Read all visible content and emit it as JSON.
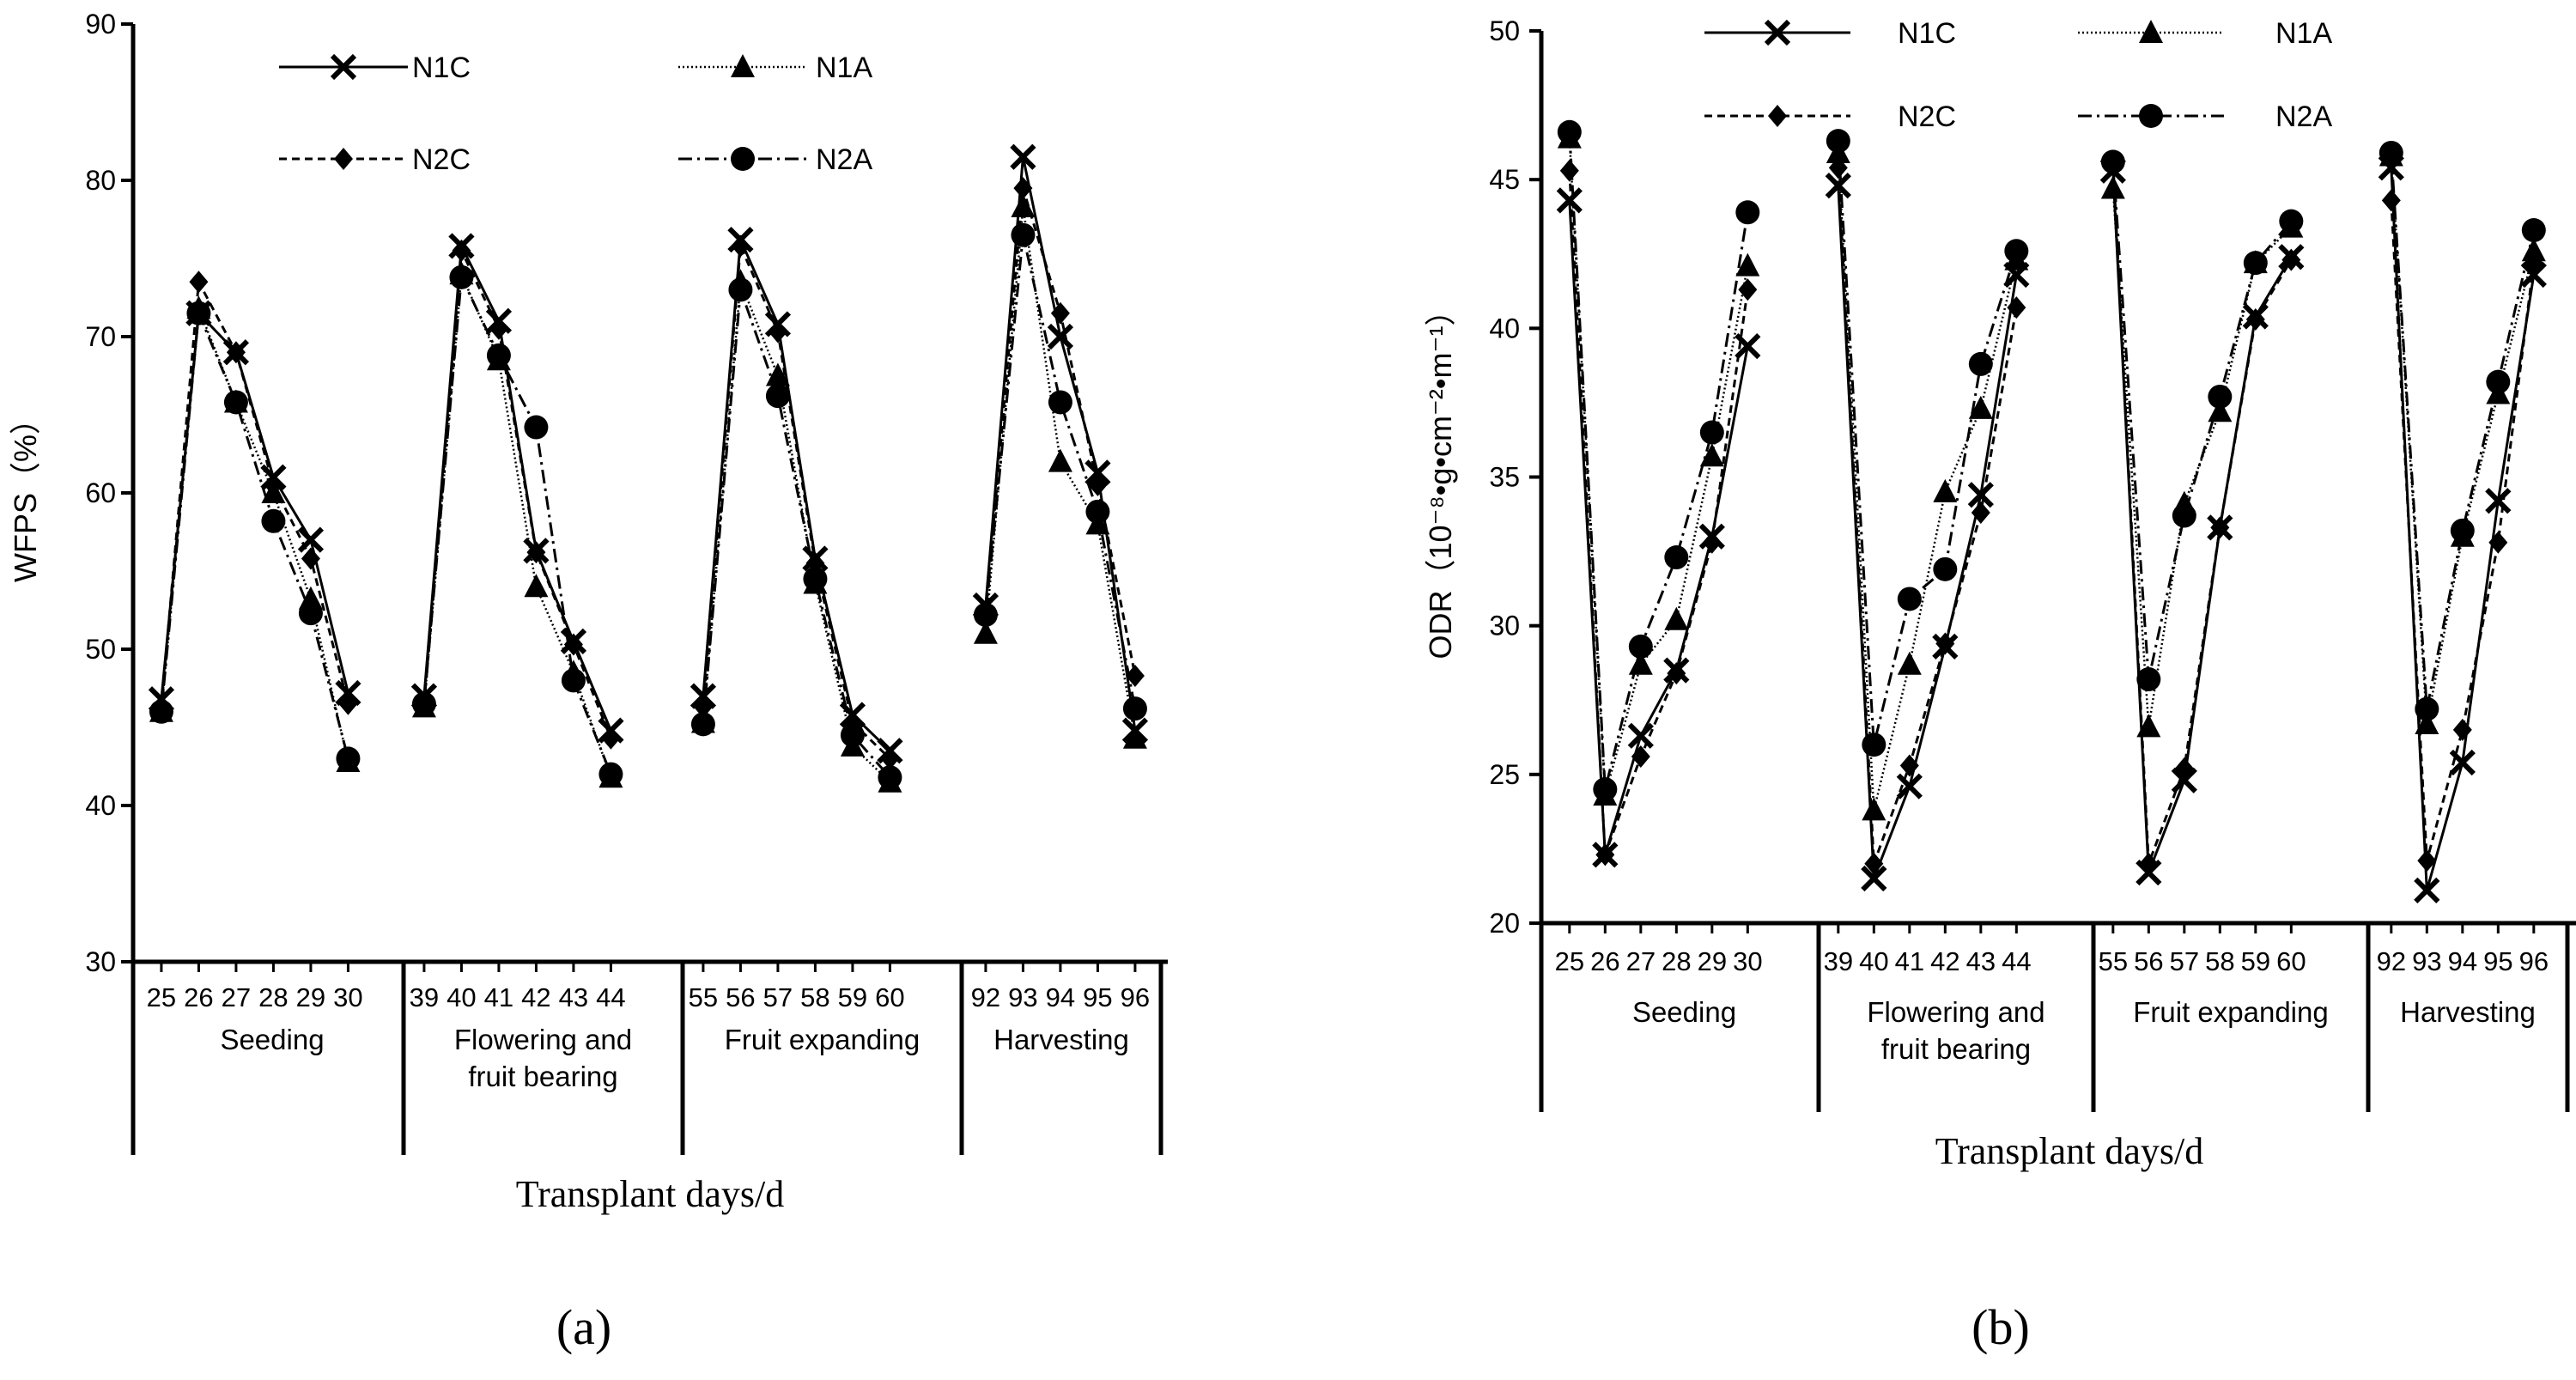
{
  "chart_data": [
    {
      "type": "line",
      "panel_label": "(a)",
      "ylabel": "WFPS（%）",
      "xlabel": "Transplant days/d",
      "ylim": [
        30,
        90
      ],
      "yticks": [
        30,
        40,
        50,
        60,
        70,
        80,
        90
      ],
      "groups": [
        {
          "name": "Seeding",
          "days": [
            "25",
            "26",
            "27",
            "28",
            "29",
            "30"
          ]
        },
        {
          "name": "Flowering and|fruit bearing",
          "days": [
            "39",
            "40",
            "41",
            "42",
            "43",
            "44"
          ]
        },
        {
          "name": "Fruit expanding",
          "days": [
            "55",
            "56",
            "57",
            "58",
            "59",
            "60"
          ]
        },
        {
          "name": "Harvesting",
          "days": [
            "92",
            "93",
            "94",
            "95",
            "96"
          ]
        }
      ],
      "series": [
        {
          "name": "N1C",
          "marker": "x",
          "dash": "",
          "values": [
            [
              46.8,
              71.5,
              69,
              61,
              57,
              47.2
            ],
            [
              47,
              75.8,
              71,
              56.3,
              50.5,
              44.8
            ],
            [
              47,
              76.2,
              70.8,
              55.8,
              45.8,
              43.5
            ],
            [
              52.8,
              81.5,
              70,
              61.3,
              44.8
            ]
          ]
        },
        {
          "name": "N1A",
          "marker": "triangle",
          "dash": "2,3",
          "values": [
            [
              46,
              71.8,
              65.8,
              60,
              53.2,
              42.8
            ],
            [
              46.3,
              74,
              68.5,
              54,
              48.5,
              41.8
            ],
            [
              45.3,
              73.5,
              67.5,
              54.2,
              43.8,
              41.5
            ],
            [
              51,
              78.3,
              62,
              58,
              44.3
            ]
          ]
        },
        {
          "name": "N2C",
          "marker": "diamond",
          "dash": "9,6",
          "values": [
            [
              46.3,
              73.5,
              69,
              60.5,
              55.8,
              46.5
            ],
            [
              46.5,
              75.5,
              70.5,
              56.2,
              50.3,
              44.3
            ],
            [
              46.3,
              75.8,
              70.3,
              55.5,
              45.3,
              43
            ],
            [
              52.3,
              79.5,
              71.5,
              60.5,
              48.3
            ]
          ]
        },
        {
          "name": "N2A",
          "marker": "circle",
          "dash": "16,6,3,6",
          "values": [
            [
              46,
              71.5,
              65.8,
              58.2,
              52.3,
              43
            ],
            [
              46.5,
              73.8,
              68.8,
              64.2,
              48,
              42
            ],
            [
              45.2,
              73,
              66.2,
              54.5,
              44.5,
              41.8
            ],
            [
              52.2,
              76.5,
              65.8,
              58.8,
              46.2
            ]
          ]
        }
      ]
    },
    {
      "type": "line",
      "panel_label": "(b)",
      "ylabel": "ODR（10⁻⁸•g•cm⁻²•m⁻¹）",
      "xlabel": "Transplant days/d",
      "ylim": [
        20,
        50
      ],
      "yticks": [
        20,
        25,
        30,
        35,
        40,
        45,
        50
      ],
      "groups": [
        {
          "name": "Seeding",
          "days": [
            "25",
            "26",
            "27",
            "28",
            "29",
            "30"
          ]
        },
        {
          "name": "Flowering and|fruit bearing",
          "days": [
            "39",
            "40",
            "41",
            "42",
            "43",
            "44"
          ]
        },
        {
          "name": "Fruit expanding",
          "days": [
            "55",
            "56",
            "57",
            "58",
            "59",
            "60"
          ]
        },
        {
          "name": "Harvesting",
          "days": [
            "92",
            "93",
            "94",
            "95",
            "96"
          ]
        }
      ],
      "series": [
        {
          "name": "N1C",
          "marker": "x",
          "dash": "",
          "values": [
            [
              44.3,
              22.3,
              26.3,
              28.5,
              33,
              39.4
            ],
            [
              44.8,
              21.5,
              24.6,
              29.3,
              34.4,
              41.8
            ],
            [
              45.3,
              21.7,
              24.8,
              33.3,
              40.4,
              42.4
            ],
            [
              45.4,
              21.1,
              25.4,
              34.2,
              41.8
            ]
          ]
        },
        {
          "name": "N1A",
          "marker": "triangle",
          "dash": "2,3",
          "values": [
            [
              46.4,
              24.3,
              28.7,
              30.2,
              35.7,
              42.1
            ],
            [
              45.9,
              23.8,
              28.7,
              34.5,
              37.3,
              42.3
            ],
            [
              44.7,
              26.6,
              34.1,
              37.2,
              42.2,
              43.4
            ],
            [
              45.8,
              26.7,
              33,
              37.8,
              42.6
            ]
          ]
        },
        {
          "name": "N2C",
          "marker": "diamond",
          "dash": "9,6",
          "values": [
            [
              45.3,
              22.3,
              25.6,
              28.4,
              32.8,
              41.3
            ],
            [
              45.4,
              22,
              25.3,
              29.4,
              33.8,
              40.7
            ],
            [
              45.6,
              22,
              25.2,
              33.3,
              40.3,
              42.3
            ],
            [
              44.3,
              22.1,
              26.5,
              32.8,
              42.2
            ]
          ]
        },
        {
          "name": "N2A",
          "marker": "circle",
          "dash": "16,6,3,6",
          "values": [
            [
              46.6,
              24.5,
              29.3,
              32.3,
              36.5,
              43.9
            ],
            [
              46.3,
              26,
              30.9,
              31.9,
              38.8,
              42.6
            ],
            [
              45.6,
              28.2,
              33.7,
              37.7,
              42.2,
              43.6
            ],
            [
              45.9,
              27.2,
              33.2,
              38.2,
              43.3
            ]
          ]
        }
      ]
    }
  ]
}
